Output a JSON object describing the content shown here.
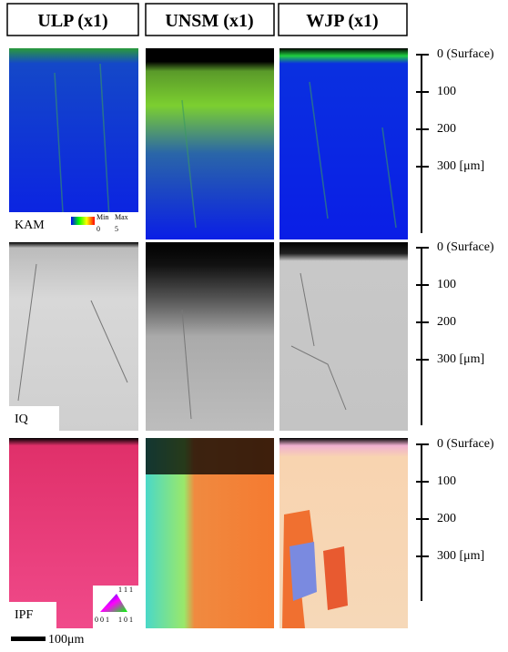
{
  "headers": [
    "ULP (x1)",
    "UNSM (x1)",
    "WJP (x1)"
  ],
  "rows": [
    {
      "label": "KAM",
      "depth_ticks": [
        "0 (Surface)",
        "100",
        "200",
        "300 [μm]"
      ]
    },
    {
      "label": "IQ",
      "depth_ticks": [
        "0 (Surface)",
        "100",
        "200",
        "300 [μm]"
      ]
    },
    {
      "label": "IPF",
      "depth_ticks": [
        "0 (Surface)",
        "100",
        "200",
        "300 [μm]"
      ]
    }
  ],
  "kam_legend": {
    "min": "Min",
    "min_value": "0",
    "max": "Max",
    "max_value": "5"
  },
  "ipf_legend": {
    "top": "1 1 1",
    "left": "0 0 1",
    "right": "1 0 1"
  },
  "scale_bar": "100μm"
}
